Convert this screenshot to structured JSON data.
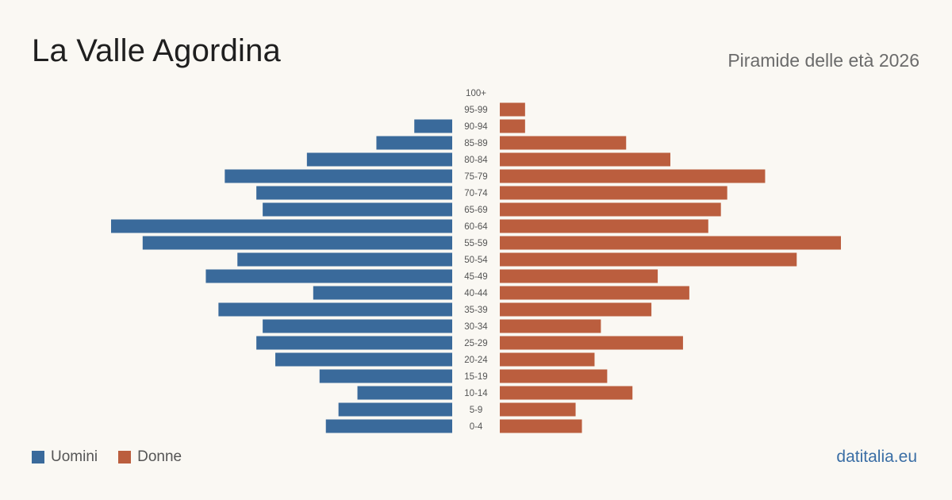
{
  "header": {
    "title": "La Valle Agordina",
    "subtitle": "Piramide delle età 2026"
  },
  "legend": {
    "items": [
      {
        "label": "Uomini",
        "color": "#3a6a9b"
      },
      {
        "label": "Donne",
        "color": "#bb5e3e"
      }
    ]
  },
  "brand": "datitalia.eu",
  "chart_data": {
    "type": "bar",
    "orientation": "horizontal",
    "categories": [
      "100+",
      "95-99",
      "90-94",
      "85-89",
      "80-84",
      "75-79",
      "70-74",
      "65-69",
      "60-64",
      "55-59",
      "50-54",
      "45-49",
      "40-44",
      "35-39",
      "30-34",
      "25-29",
      "20-24",
      "15-19",
      "10-14",
      "5-9",
      "0-4"
    ],
    "series": [
      {
        "name": "Uomini",
        "color": "#3a6a9b",
        "values": [
          0,
          0,
          6,
          12,
          23,
          36,
          31,
          30,
          54,
          49,
          34,
          39,
          22,
          37,
          30,
          31,
          28,
          21,
          15,
          18,
          20
        ]
      },
      {
        "name": "Donne",
        "color": "#bb5e3e",
        "values": [
          0,
          4,
          4,
          20,
          27,
          42,
          36,
          35,
          33,
          54,
          47,
          25,
          30,
          24,
          16,
          29,
          15,
          17,
          21,
          12,
          13
        ]
      }
    ],
    "legend_position": "bottom-left",
    "grid": false
  }
}
